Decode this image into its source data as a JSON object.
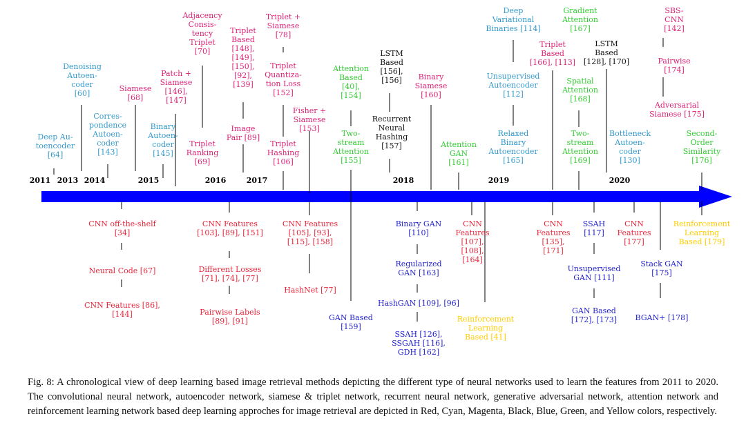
{
  "colors": {
    "red": "#e8253a",
    "cyan": "#3399cc",
    "magenta": "#dd2277",
    "black": "#111111",
    "blue": "#2222cc",
    "green": "#33cc33",
    "yellow": "#ffcc00",
    "arrow": "#0000ff"
  },
  "years": [
    "2011",
    "2013",
    "2014",
    "2015",
    "2016",
    "2017",
    "2018",
    "2019",
    "2020"
  ],
  "labels": [
    {
      "id": "deep-autoencoder",
      "text": "Deep Au-\ntoencoder\n[64]",
      "color": "cyan"
    },
    {
      "id": "denoising-autoencoder",
      "text": "Denoising\nAutoen-\ncoder\n[60]",
      "color": "cyan"
    },
    {
      "id": "correspondence-autoencoder",
      "text": "Corres-\npondence\nAutoen-\ncoder\n[143]",
      "color": "cyan"
    },
    {
      "id": "siamese-68",
      "text": "Siamese\n[68]",
      "color": "magenta"
    },
    {
      "id": "binary-autoencoder",
      "text": "Binary\nAutoen-\ncoder\n[145]",
      "color": "cyan"
    },
    {
      "id": "patch-siamese",
      "text": "Patch +\nSiamese\n[146],\n[147]",
      "color": "magenta"
    },
    {
      "id": "adjacency-triplet",
      "text": "Adjacency\nConsis-\ntency\nTriplet\n[70]",
      "color": "magenta"
    },
    {
      "id": "triplet-ranking",
      "text": "Triplet\nRanking\n[69]",
      "color": "magenta"
    },
    {
      "id": "triplet-based-148",
      "text": "Triplet\nBased\n[148],\n[149],\n[150],\n[92],\n[139]",
      "color": "magenta"
    },
    {
      "id": "image-pair",
      "text": "Image\nPair [89]",
      "color": "magenta"
    },
    {
      "id": "triplet-siamese",
      "text": "Triplet +\nSiamese\n[78]",
      "color": "magenta"
    },
    {
      "id": "triplet-quantization",
      "text": "Triplet\nQuantiza-\ntion Loss\n[152]",
      "color": "magenta"
    },
    {
      "id": "triplet-hashing",
      "text": "Triplet\nHashing\n[106]",
      "color": "magenta"
    },
    {
      "id": "fisher-siamese",
      "text": "Fisher +\nSiamese\n[153]",
      "color": "magenta"
    },
    {
      "id": "attention-based-154",
      "text": "Attention\nBased\n[40],\n[154]",
      "color": "green"
    },
    {
      "id": "two-stream-attention-155",
      "text": "Two-\nstream\nAttention\n[155]",
      "color": "green"
    },
    {
      "id": "lstm-156",
      "text": "LSTM\nBased\n[156],\n[156]",
      "color": "black"
    },
    {
      "id": "recurrent-hashing",
      "text": "Recurrent\nNeural\nHashing\n[157]",
      "color": "black"
    },
    {
      "id": "binary-siamese",
      "text": "Binary\nSiamese\n[160]",
      "color": "magenta"
    },
    {
      "id": "attention-gan",
      "text": "Attention\nGAN\n[161]",
      "color": "green"
    },
    {
      "id": "deep-variational-binaries",
      "text": "Deep\nVariational\nBinaries [114]",
      "color": "cyan"
    },
    {
      "id": "unsupervised-autoencoder",
      "text": "Unsupervised\nAutoencoder\n[112]",
      "color": "cyan"
    },
    {
      "id": "relaxed-binary-autoencoder",
      "text": "Relaxed\nBinary\nAutoencoder\n[165]",
      "color": "cyan"
    },
    {
      "id": "triplet-based-166",
      "text": "Triplet\nBased\n[166], [113]",
      "color": "magenta"
    },
    {
      "id": "gradient-attention",
      "text": "Gradient\nAttention\n[167]",
      "color": "green"
    },
    {
      "id": "spatial-attention",
      "text": "Spatial\nAttention\n[168]",
      "color": "green"
    },
    {
      "id": "two-stream-attention-169",
      "text": "Two-\nstream\nAttention\n[169]",
      "color": "green"
    },
    {
      "id": "lstm-128",
      "text": "LSTM\nBased\n[128], [170]",
      "color": "black"
    },
    {
      "id": "bottleneck-autoencoder",
      "text": "Bottleneck\nAutoen-\ncoder\n[130]",
      "color": "cyan"
    },
    {
      "id": "sbs-cnn",
      "text": "SBS-\nCNN\n[142]",
      "color": "magenta"
    },
    {
      "id": "pairwise-174",
      "text": "Pairwise\n[174]",
      "color": "magenta"
    },
    {
      "id": "adversarial-siamese",
      "text": "Adversarial\nSiamese [175]",
      "color": "magenta"
    },
    {
      "id": "second-order-similarity",
      "text": "Second-\nOrder\nSimilarity\n[176]",
      "color": "green"
    },
    {
      "id": "cnn-off-the-shelf",
      "text": "CNN off-the-shelf\n[34]",
      "color": "red"
    },
    {
      "id": "neural-code",
      "text": "Neural Code [67]",
      "color": "red"
    },
    {
      "id": "cnn-features-86",
      "text": "CNN Features [86],\n[144]",
      "color": "red"
    },
    {
      "id": "cnn-features-103",
      "text": "CNN Features\n[103], [89], [151]",
      "color": "red"
    },
    {
      "id": "different-losses",
      "text": "Different Losses\n[71], [74], [77]",
      "color": "red"
    },
    {
      "id": "pairwise-labels",
      "text": "Pairwise Labels\n[89], [91]",
      "color": "red"
    },
    {
      "id": "cnn-features-105",
      "text": "CNN Features\n[105], [93],\n[115], [158]",
      "color": "red"
    },
    {
      "id": "hashnet",
      "text": "HashNet [77]",
      "color": "red"
    },
    {
      "id": "gan-based-159",
      "text": "GAN Based\n[159]",
      "color": "blue"
    },
    {
      "id": "binary-gan",
      "text": "Binary GAN\n[110]",
      "color": "blue"
    },
    {
      "id": "regularized-gan",
      "text": "Regularized\nGAN [163]",
      "color": "blue"
    },
    {
      "id": "hashgan",
      "text": "HashGAN [109], [96]",
      "color": "blue"
    },
    {
      "id": "ssah-126",
      "text": "SSAH [126],\nSSGAH [116],\nGDH [162]",
      "color": "blue"
    },
    {
      "id": "cnn-features-107",
      "text": "CNN\nFeatures\n[107],\n[108],\n[164]",
      "color": "red"
    },
    {
      "id": "reinforcement-learning-1",
      "text": "Reinforcement\nLearning\nBased [41]",
      "color": "yellow"
    },
    {
      "id": "cnn-features-135",
      "text": "CNN\nFeatures\n[135],\n[171]",
      "color": "red"
    },
    {
      "id": "ssah-117",
      "text": "SSAH\n[117]",
      "color": "blue"
    },
    {
      "id": "unsupervised-gan",
      "text": "Unsupervised\nGAN [111]",
      "color": "blue"
    },
    {
      "id": "gan-based-172",
      "text": "GAN Based\n[172], [173]",
      "color": "blue"
    },
    {
      "id": "cnn-features-177",
      "text": "CNN\nFeatures\n[177]",
      "color": "red"
    },
    {
      "id": "stack-gan",
      "text": "Stack GAN\n[175]",
      "color": "blue"
    },
    {
      "id": "bgan-plus",
      "text": "BGAN+ [178]",
      "color": "blue"
    },
    {
      "id": "reinforcement-learning-2",
      "text": "Reinforcement\nLearning\nBased [179]",
      "color": "yellow"
    }
  ],
  "caption": "Fig. 8: A chronological view of deep learning based image retrieval methods depicting the different type of neural networks used to learn the features from 2011 to 2020. The convolutional neural network, autoencoder network, siamese & triplet network, recurrent neural network, generative adversarial network, attention network and reinforcement learning network based deep learning approches for image retrieval are depicted in Red, Cyan, Magenta, Black, Blue, Green, and Yellow colors, respectively."
}
